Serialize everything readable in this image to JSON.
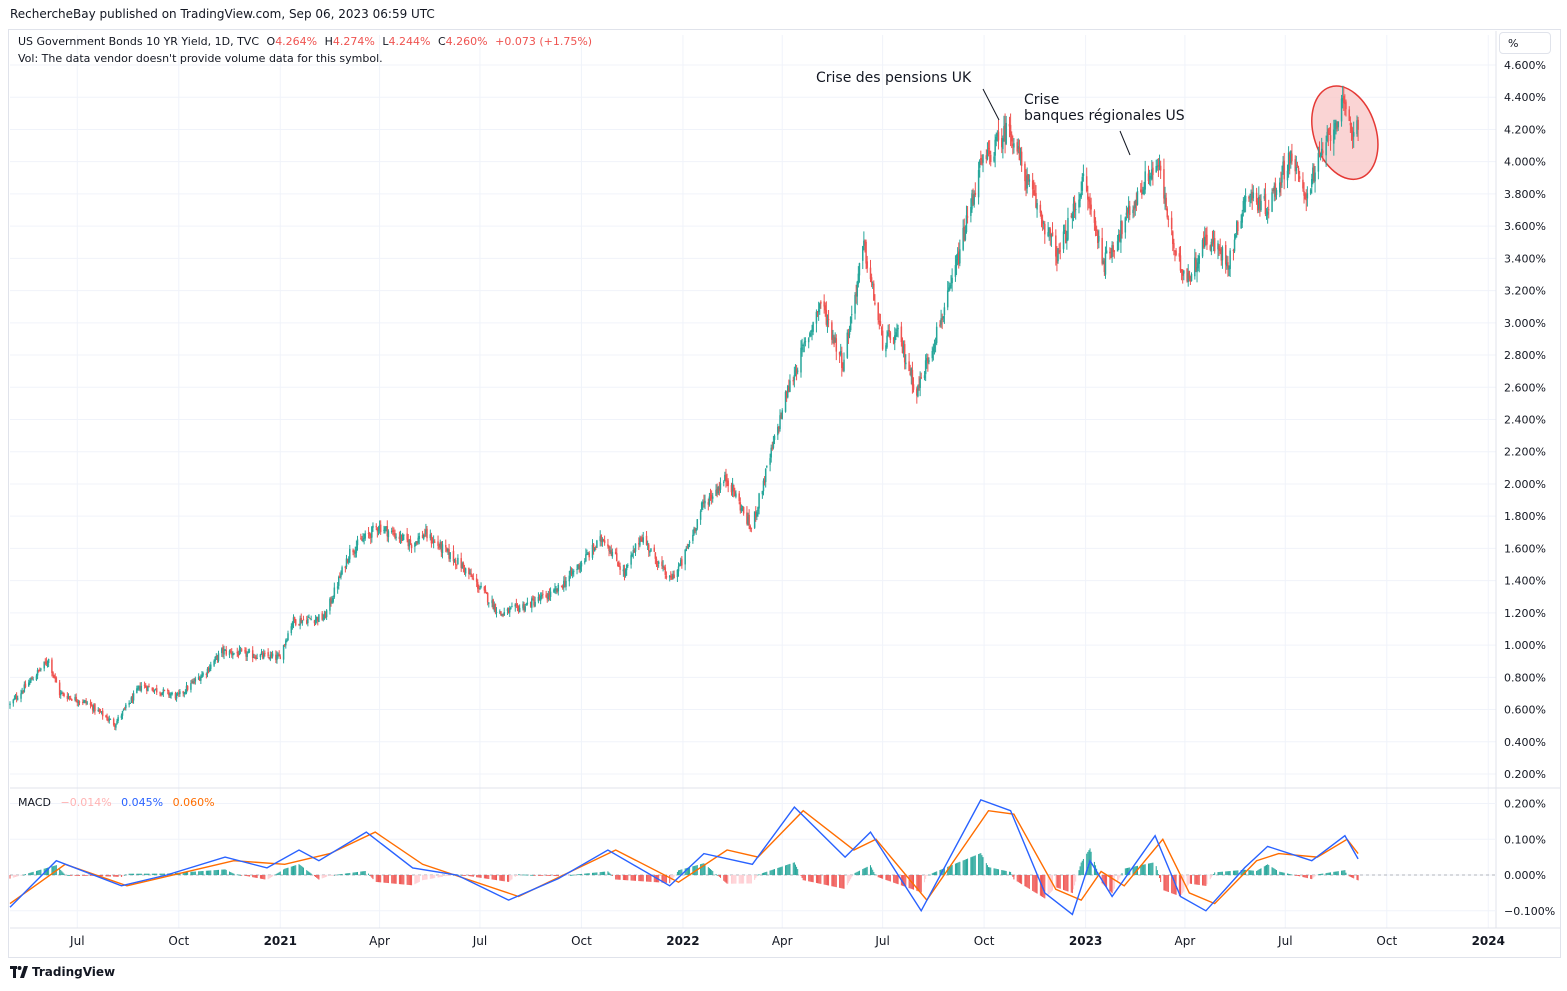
{
  "publisher": "RechercheBay published on TradingView.com, Sep 06, 2023 06:59 UTC",
  "symbol_legend": {
    "name": "US Government Bonds 10 YR Yield, 1D, TVC",
    "o_label": "O",
    "open": "4.264%",
    "h_label": "H",
    "high": "4.274%",
    "l_label": "L",
    "low": "4.244%",
    "c_label": "C",
    "close": "4.260%",
    "change": "+0.073 (+1.75%)"
  },
  "volume_note": "Vol: The data vendor doesn't provide volume data for this symbol.",
  "scale_button": "%",
  "annotations": {
    "uk": "Crise des pensions UK",
    "us_line1": "Crise",
    "us_line2": "banques régionales US"
  },
  "macd_legend": {
    "label": "MACD",
    "histogram": "−0.014%",
    "macd": "0.045%",
    "signal": "0.060%"
  },
  "footer_brand": "TradingView",
  "colors": {
    "up": "#26a69a",
    "down": "#ef5350",
    "macd_line": "#2962ff",
    "signal_line": "#ff6d00",
    "hist_pos": "#26a69a",
    "hist_neg": "#ef5350",
    "hist_neg_light": "#ffcdd2",
    "highlight_fill": "#f8c5c5",
    "highlight_stroke": "#e53935",
    "grid": "#f0f3fa",
    "text": "#131722"
  },
  "chart_data": [
    {
      "type": "candlestick",
      "title": "US Government Bonds 10 YR Yield, 1D, TVC",
      "xlabel": "",
      "ylabel": "%",
      "ylim": [
        0.2,
        4.6
      ],
      "y_ticks": [
        "4.600%",
        "4.400%",
        "4.200%",
        "4.000%",
        "3.800%",
        "3.600%",
        "3.400%",
        "3.200%",
        "3.000%",
        "2.800%",
        "2.600%",
        "2.400%",
        "2.200%",
        "2.000%",
        "1.800%",
        "1.600%",
        "1.400%",
        "1.200%",
        "1.000%",
        "0.800%",
        "0.600%",
        "0.400%",
        "0.200%"
      ],
      "x_range": [
        "2020-05-01",
        "2024-01-08"
      ],
      "x_ticks": [
        {
          "date": "2020-07-01",
          "label": "Jul",
          "bold": false
        },
        {
          "date": "2020-10-01",
          "label": "Oct",
          "bold": false
        },
        {
          "date": "2021-01-01",
          "label": "2021",
          "bold": true
        },
        {
          "date": "2021-04-01",
          "label": "Apr",
          "bold": false
        },
        {
          "date": "2021-07-01",
          "label": "Jul",
          "bold": false
        },
        {
          "date": "2021-10-01",
          "label": "Oct",
          "bold": false
        },
        {
          "date": "2022-01-01",
          "label": "2022",
          "bold": true
        },
        {
          "date": "2022-04-01",
          "label": "Apr",
          "bold": false
        },
        {
          "date": "2022-07-01",
          "label": "Jul",
          "bold": false
        },
        {
          "date": "2022-10-01",
          "label": "Oct",
          "bold": false
        },
        {
          "date": "2023-01-01",
          "label": "2023",
          "bold": true
        },
        {
          "date": "2023-04-01",
          "label": "Apr",
          "bold": false
        },
        {
          "date": "2023-07-01",
          "label": "Jul",
          "bold": false
        },
        {
          "date": "2023-10-01",
          "label": "Oct",
          "bold": false
        },
        {
          "date": "2024-01-01",
          "label": "2024",
          "bold": true
        }
      ],
      "close_path": [
        [
          "2020-05-01",
          0.63
        ],
        [
          "2020-06-05",
          0.91
        ],
        [
          "2020-06-15",
          0.7
        ],
        [
          "2020-07-10",
          0.64
        ],
        [
          "2020-08-04",
          0.51
        ],
        [
          "2020-08-28",
          0.75
        ],
        [
          "2020-09-30",
          0.68
        ],
        [
          "2020-10-26",
          0.84
        ],
        [
          "2020-11-09",
          0.96
        ],
        [
          "2020-12-31",
          0.92
        ],
        [
          "2021-01-12",
          1.15
        ],
        [
          "2021-02-10",
          1.17
        ],
        [
          "2021-03-05",
          1.58
        ],
        [
          "2021-03-31",
          1.74
        ],
        [
          "2021-04-30",
          1.63
        ],
        [
          "2021-05-12",
          1.69
        ],
        [
          "2021-06-15",
          1.49
        ],
        [
          "2021-07-20",
          1.19
        ],
        [
          "2021-08-16",
          1.26
        ],
        [
          "2021-09-08",
          1.33
        ],
        [
          "2021-10-21",
          1.67
        ],
        [
          "2021-11-09",
          1.44
        ],
        [
          "2021-11-24",
          1.68
        ],
        [
          "2021-12-20",
          1.4
        ],
        [
          "2021-12-31",
          1.51
        ],
        [
          "2022-01-19",
          1.87
        ],
        [
          "2022-02-10",
          2.04
        ],
        [
          "2022-03-04",
          1.72
        ],
        [
          "2022-04-05",
          2.56
        ],
        [
          "2022-05-06",
          3.13
        ],
        [
          "2022-05-26",
          2.75
        ],
        [
          "2022-06-14",
          3.48
        ],
        [
          "2022-07-01",
          2.88
        ],
        [
          "2022-07-15",
          2.92
        ],
        [
          "2022-08-01",
          2.57
        ],
        [
          "2022-08-31",
          3.19
        ],
        [
          "2022-09-27",
          3.96
        ],
        [
          "2022-10-24",
          4.22
        ],
        [
          "2022-11-09",
          3.87
        ],
        [
          "2022-12-07",
          3.41
        ],
        [
          "2022-12-30",
          3.88
        ],
        [
          "2023-01-18",
          3.37
        ],
        [
          "2023-02-27",
          3.92
        ],
        [
          "2023-03-08",
          3.98
        ],
        [
          "2023-03-24",
          3.38
        ],
        [
          "2023-04-06",
          3.29
        ],
        [
          "2023-04-20",
          3.53
        ],
        [
          "2023-05-11",
          3.38
        ],
        [
          "2023-05-26",
          3.8
        ],
        [
          "2023-06-15",
          3.72
        ],
        [
          "2023-07-06",
          4.05
        ],
        [
          "2023-07-18",
          3.78
        ],
        [
          "2023-08-21",
          4.34
        ],
        [
          "2023-09-01",
          4.18
        ],
        [
          "2023-09-05",
          4.26
        ]
      ]
    },
    {
      "type": "line",
      "title": "MACD",
      "series": [
        {
          "name": "MACD",
          "note": "blue line"
        },
        {
          "name": "Signal",
          "note": "orange line"
        },
        {
          "name": "Histogram",
          "note": "green/red bars"
        }
      ],
      "ylim": [
        -0.13,
        0.22
      ],
      "y_ticks": [
        "0.200%",
        "0.100%",
        "0.000%",
        "−0.100%"
      ],
      "macd_path": [
        [
          "2020-05-01",
          -0.09
        ],
        [
          "2020-06-12",
          0.04
        ],
        [
          "2020-08-10",
          -0.03
        ],
        [
          "2020-09-20",
          0.0
        ],
        [
          "2020-11-12",
          0.05
        ],
        [
          "2020-12-20",
          0.02
        ],
        [
          "2021-01-18",
          0.07
        ],
        [
          "2021-02-05",
          0.04
        ],
        [
          "2021-03-20",
          0.12
        ],
        [
          "2021-05-01",
          0.02
        ],
        [
          "2021-06-10",
          0.0
        ],
        [
          "2021-07-27",
          -0.07
        ],
        [
          "2021-09-10",
          -0.01
        ],
        [
          "2021-10-25",
          0.07
        ],
        [
          "2021-12-20",
          -0.03
        ],
        [
          "2022-01-20",
          0.06
        ],
        [
          "2022-03-05",
          0.03
        ],
        [
          "2022-04-12",
          0.19
        ],
        [
          "2022-05-28",
          0.05
        ],
        [
          "2022-06-20",
          0.12
        ],
        [
          "2022-08-05",
          -0.1
        ],
        [
          "2022-09-28",
          0.21
        ],
        [
          "2022-10-25",
          0.18
        ],
        [
          "2022-11-25",
          -0.05
        ],
        [
          "2022-12-20",
          -0.11
        ],
        [
          "2023-01-05",
          0.04
        ],
        [
          "2023-01-25",
          -0.06
        ],
        [
          "2023-03-05",
          0.11
        ],
        [
          "2023-03-28",
          -0.06
        ],
        [
          "2023-04-20",
          -0.1
        ],
        [
          "2023-05-25",
          0.02
        ],
        [
          "2023-06-15",
          0.08
        ],
        [
          "2023-07-25",
          0.04
        ],
        [
          "2023-08-24",
          0.11
        ],
        [
          "2023-09-05",
          0.045
        ]
      ],
      "signal_path": [
        [
          "2020-05-01",
          -0.08
        ],
        [
          "2020-06-20",
          0.03
        ],
        [
          "2020-08-15",
          -0.03
        ],
        [
          "2020-11-20",
          0.04
        ],
        [
          "2021-01-05",
          0.03
        ],
        [
          "2021-02-15",
          0.06
        ],
        [
          "2021-03-28",
          0.12
        ],
        [
          "2021-05-10",
          0.03
        ],
        [
          "2021-08-05",
          -0.06
        ],
        [
          "2021-11-01",
          0.07
        ],
        [
          "2021-12-28",
          -0.02
        ],
        [
          "2022-02-10",
          0.07
        ],
        [
          "2022-03-10",
          0.05
        ],
        [
          "2022-04-20",
          0.18
        ],
        [
          "2022-06-05",
          0.07
        ],
        [
          "2022-06-25",
          0.1
        ],
        [
          "2022-08-10",
          -0.07
        ],
        [
          "2022-10-05",
          0.18
        ],
        [
          "2022-10-28",
          0.17
        ],
        [
          "2022-12-05",
          -0.04
        ],
        [
          "2022-12-28",
          -0.07
        ],
        [
          "2023-01-15",
          0.01
        ],
        [
          "2023-02-05",
          -0.03
        ],
        [
          "2023-03-12",
          0.1
        ],
        [
          "2023-04-05",
          -0.05
        ],
        [
          "2023-04-28",
          -0.08
        ],
        [
          "2023-06-05",
          0.04
        ],
        [
          "2023-06-25",
          0.06
        ],
        [
          "2023-07-30",
          0.05
        ],
        [
          "2023-08-26",
          0.1
        ],
        [
          "2023-09-05",
          0.06
        ]
      ]
    }
  ]
}
